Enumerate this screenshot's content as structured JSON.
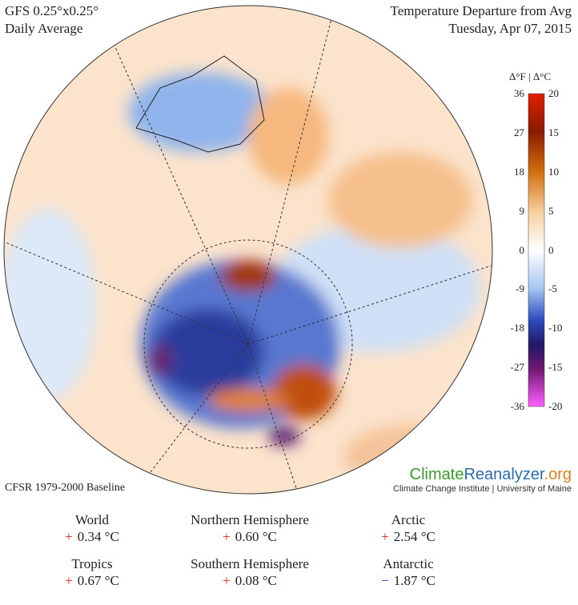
{
  "header": {
    "model": "GFS 0.25°x0.25°",
    "period": "Daily Average",
    "title": "Temperature Departure from Avg",
    "date": "Tuesday, Apr 07, 2015"
  },
  "colorbar": {
    "title": "Δ°F | Δ°C",
    "fahrenheit": [
      "36",
      "27",
      "18",
      "9",
      "0",
      "-9",
      "-18",
      "-27",
      "-36"
    ],
    "celsius": [
      "20",
      "15",
      "10",
      "5",
      "0",
      "-5",
      "-10",
      "-15",
      "-20"
    ]
  },
  "baseline": "CFSR 1979-2000 Baseline",
  "brand": {
    "climate": "Climate",
    "reanalyzer": "Reanalyzer",
    ".org": ".org",
    "institute": "Climate Change Institute | University of Maine"
  },
  "stats": [
    {
      "label": "World",
      "sign": "+",
      "value": "0.34 °C"
    },
    {
      "label": "Northern Hemisphere",
      "sign": "+",
      "value": "0.60 °C"
    },
    {
      "label": "Arctic",
      "sign": "+",
      "value": "2.54 °C"
    },
    {
      "label": "Tropics",
      "sign": "+",
      "value": "0.67 °C"
    },
    {
      "label": "Southern Hemisphere",
      "sign": "+",
      "value": "0.08 °C"
    },
    {
      "label": "Antarctic",
      "sign": "−",
      "value": "1.87 °C"
    }
  ]
}
